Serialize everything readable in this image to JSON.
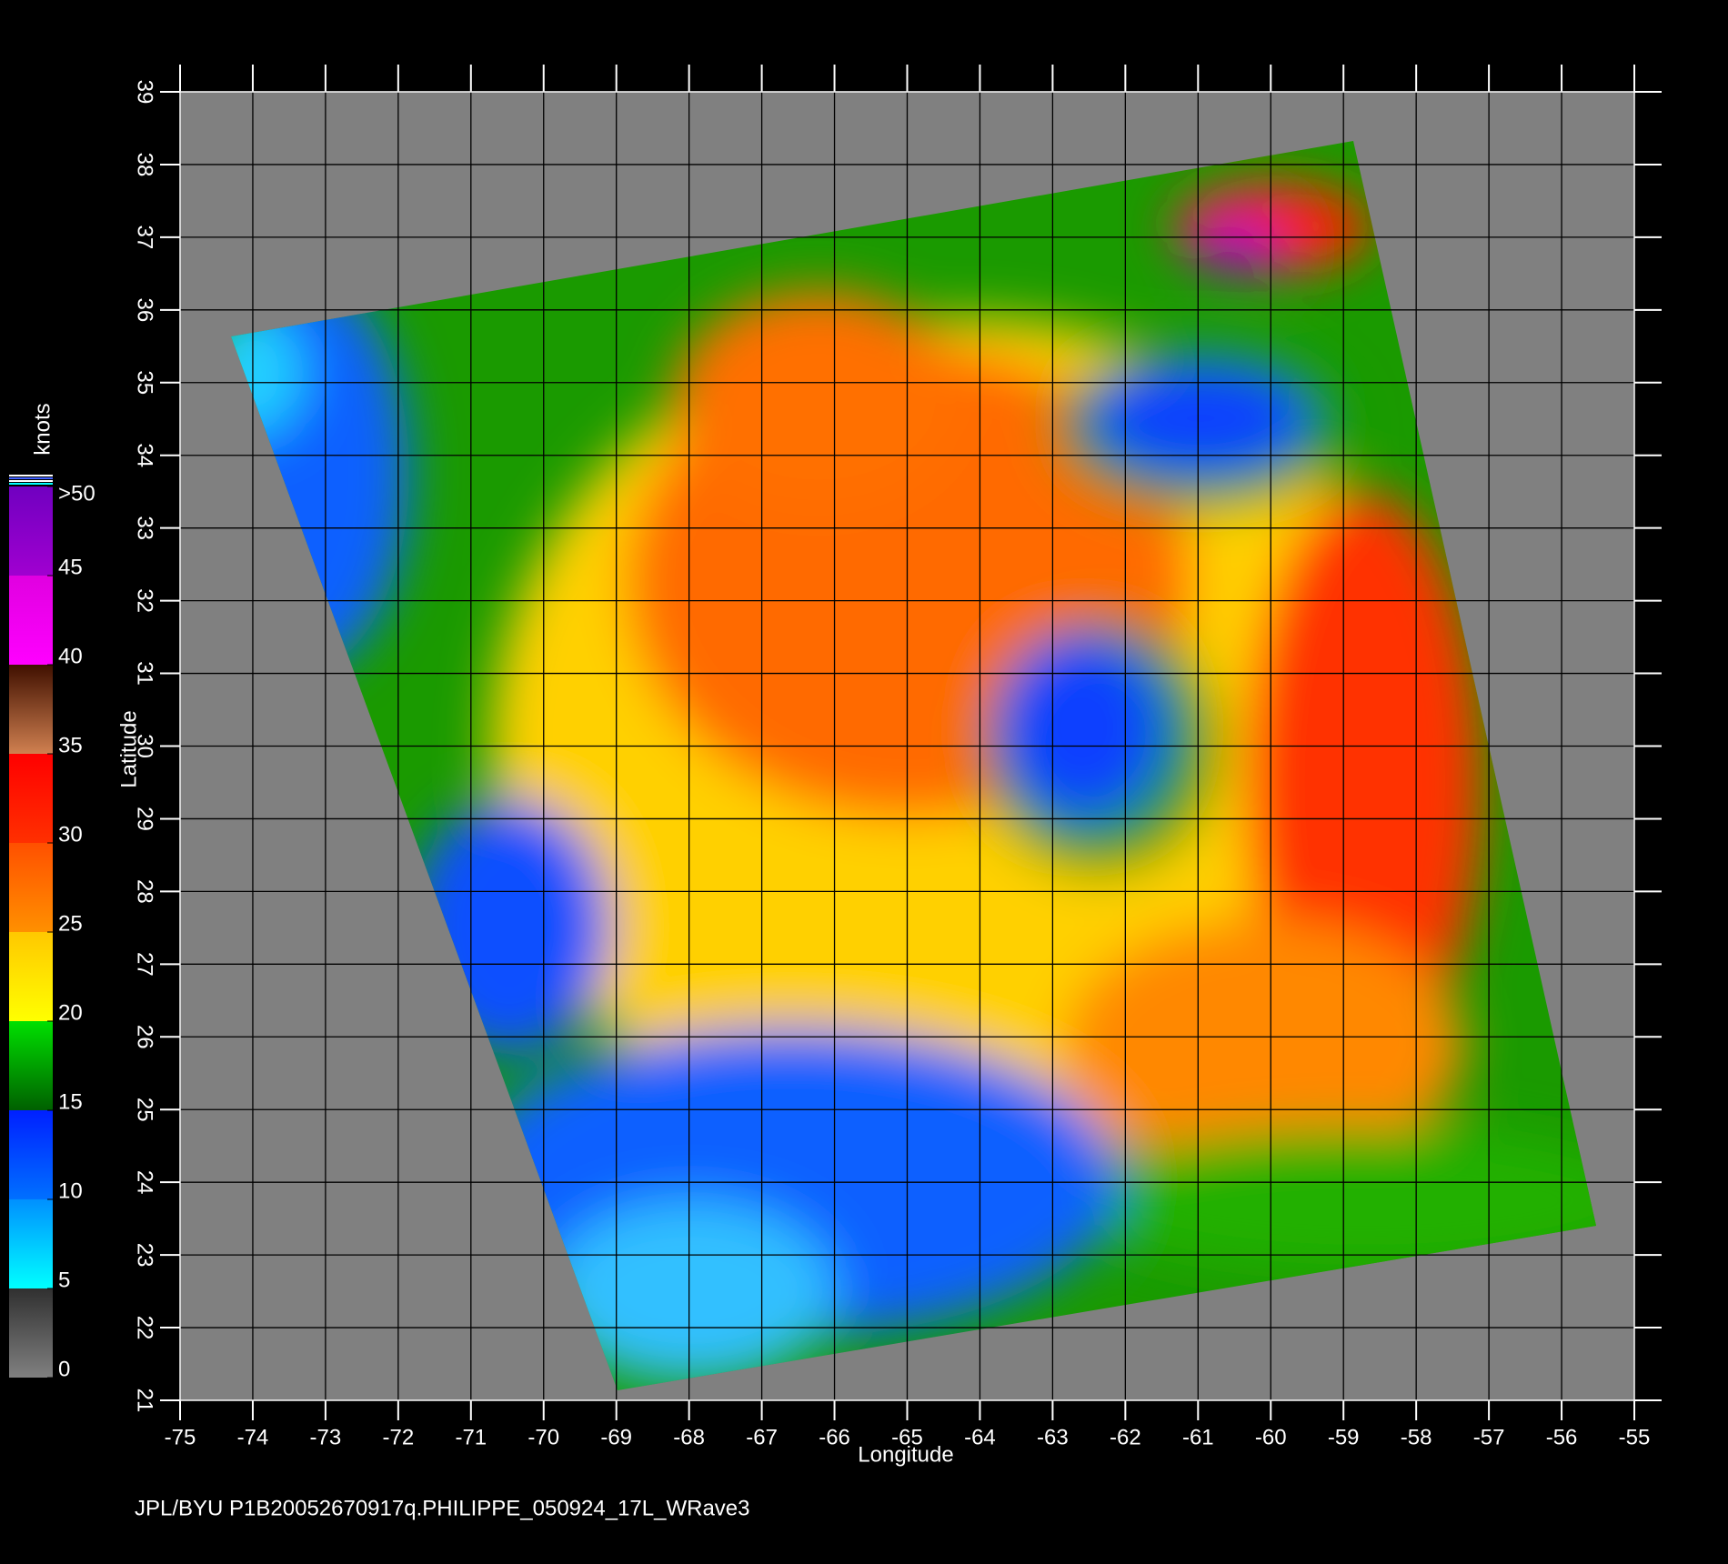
{
  "chart_data": {
    "type": "wind-map",
    "footer": "JPL/BYU   P1B20052670917q.PHILIPPE_050924_17L_WRave3",
    "x_label": "Longitude",
    "y_label": "Latitude",
    "xlim": [
      -75,
      -55
    ],
    "ylim": [
      21,
      39
    ],
    "xticks": [
      -75,
      -74,
      -73,
      -72,
      -71,
      -70,
      -69,
      -68,
      -67,
      -66,
      -65,
      -64,
      -63,
      -62,
      -61,
      -60,
      -59,
      -58,
      -57,
      -56,
      -55
    ],
    "yticks": [
      21,
      22,
      23,
      24,
      25,
      26,
      27,
      28,
      29,
      30,
      31,
      32,
      33,
      34,
      35,
      36,
      37,
      38,
      39
    ],
    "grid": true,
    "colorbar": {
      "label": "knots",
      "lim": [
        0,
        50
      ],
      "ticks": [
        0,
        5,
        10,
        15,
        20,
        25,
        30,
        35,
        40,
        45,
        {
          "value": 50,
          "label": ">50"
        }
      ],
      "bands": [
        {
          "from": "#808080",
          "to": "#303030"
        },
        {
          "from": "#00ffff",
          "to": "#0090ff"
        },
        {
          "from": "#0070ff",
          "to": "#0020ff"
        },
        {
          "from": "#006000",
          "to": "#00e000"
        },
        {
          "from": "#ffff00",
          "to": "#ffc800"
        },
        {
          "from": "#ff9000",
          "to": "#ff5000"
        },
        {
          "from": "#ff3000",
          "to": "#ff0000"
        },
        {
          "from": "#d08050",
          "to": "#401000"
        },
        {
          "from": "#ff00ff",
          "to": "#e000e0"
        },
        {
          "from": "#a000d0",
          "to": "#7000c0"
        }
      ]
    }
  }
}
